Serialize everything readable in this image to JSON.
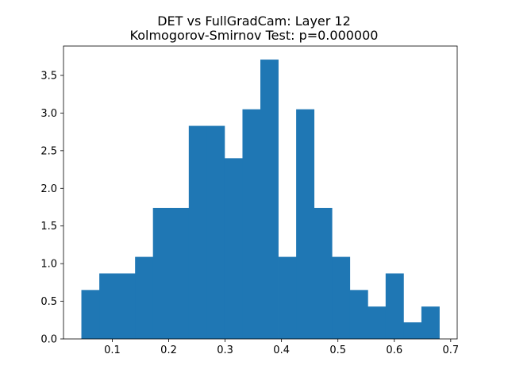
{
  "chart_data": {
    "type": "bar",
    "title": "DET vs FullGradCam: Layer 12",
    "subtitle": "Kolmogorov-Smirnov Test: p=0.000000",
    "xlabel": "",
    "ylabel": "",
    "xlim": [
      0.0135,
      0.7115
    ],
    "ylim": [
      0.0,
      3.89
    ],
    "grid": false,
    "bar_color": "#1f77b4",
    "x_ticks": [
      "0.1",
      "0.2",
      "0.3",
      "0.4",
      "0.5",
      "0.6",
      "0.7"
    ],
    "x_tick_values": [
      0.1,
      0.2,
      0.3,
      0.4,
      0.5,
      0.6,
      0.7
    ],
    "y_ticks": [
      "0.0",
      "0.5",
      "1.0",
      "1.5",
      "2.0",
      "2.5",
      "3.0",
      "3.5"
    ],
    "y_tick_values": [
      0.0,
      0.5,
      1.0,
      1.5,
      2.0,
      2.5,
      3.0,
      3.5
    ],
    "bin_edges": [
      0.0452,
      0.077,
      0.1087,
      0.1404,
      0.1721,
      0.2039,
      0.2356,
      0.2673,
      0.299,
      0.3308,
      0.3625,
      0.3942,
      0.426,
      0.4577,
      0.4894,
      0.5211,
      0.5529,
      0.5846,
      0.6163,
      0.648,
      0.6798
    ],
    "values": [
      0.65,
      0.87,
      0.87,
      1.09,
      1.74,
      1.74,
      2.83,
      2.83,
      2.4,
      3.05,
      3.71,
      1.09,
      3.05,
      1.74,
      1.09,
      0.65,
      0.43,
      0.87,
      0.22,
      0.43
    ]
  }
}
